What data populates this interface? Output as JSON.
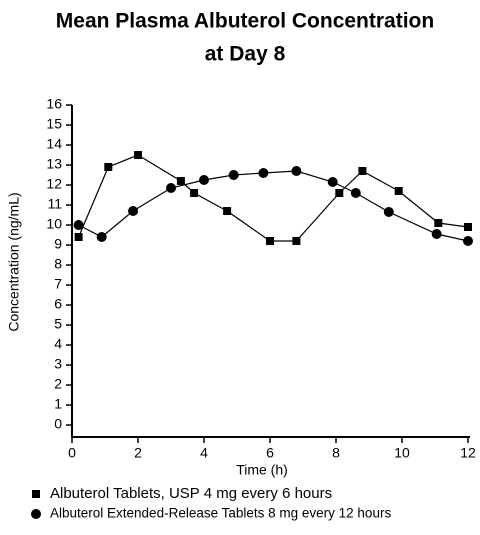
{
  "chart_data": {
    "type": "line",
    "title": [
      "Mean Plasma Albuterol Concentration",
      "at Day 8"
    ],
    "x_label": "Time (h)",
    "y_label": "Concentration (ng/mL)",
    "xlim": [
      0,
      12
    ],
    "xticks": [
      0,
      2,
      4,
      6,
      8,
      10,
      12
    ],
    "ylim": [
      -0.6,
      16
    ],
    "yticks": [
      0,
      1,
      2,
      3,
      4,
      5,
      6,
      7,
      8,
      9,
      10,
      11,
      12,
      13,
      14,
      15,
      16
    ],
    "series": [
      {
        "name": "Albuterol Tablets, USP  4 mg every 6 hours",
        "color": "#000000",
        "marker": "square",
        "x": [
          0.2,
          1.1,
          2.0,
          3.3,
          3.7,
          4.7,
          6.0,
          6.8,
          8.1,
          8.8,
          9.9,
          11.1,
          12.0
        ],
        "values": [
          9.4,
          12.9,
          13.5,
          12.2,
          11.6,
          10.7,
          9.2,
          9.2,
          11.6,
          12.7,
          11.7,
          10.1,
          9.9
        ]
      },
      {
        "name": "Albuterol Extended-Release Tablets 8 mg every 12 hours",
        "color": "#000000",
        "marker": "circle",
        "x": [
          0.2,
          0.9,
          1.85,
          3.0,
          4.0,
          4.9,
          5.8,
          6.8,
          7.9,
          8.6,
          9.6,
          11.05,
          12.0
        ],
        "values": [
          10.0,
          9.4,
          10.7,
          11.85,
          12.25,
          12.5,
          12.6,
          12.7,
          12.15,
          11.6,
          10.65,
          9.55,
          9.2
        ]
      }
    ]
  }
}
